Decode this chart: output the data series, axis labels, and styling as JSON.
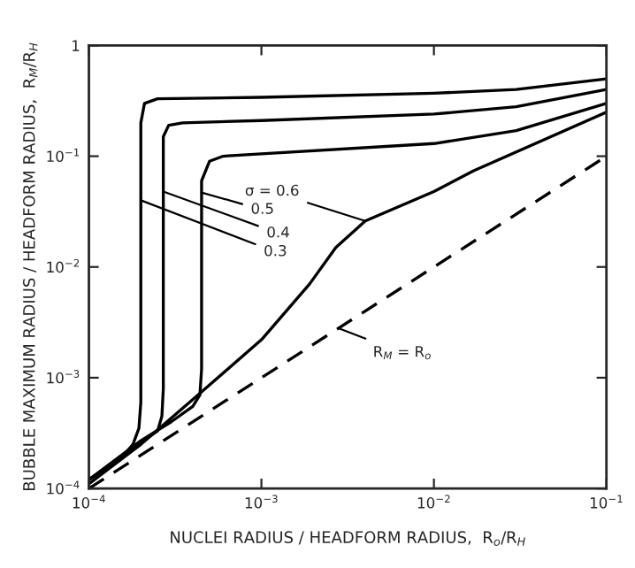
{
  "chart_data": {
    "type": "line",
    "xlabel": "NUCLEI RADIUS / HEADFORM RADIUS,  R$_{o}$/R$_{H}$",
    "ylabel": "BUBBLE MAXIMUM RADIUS / HEADFORM RADIUS,  R$_{M}$/R$_{H}$",
    "log": "xy",
    "xlim": [
      0.0001,
      0.1
    ],
    "ylim": [
      0.0001,
      1
    ],
    "xticks": [
      {
        "value": 0.0001,
        "label": "10$^{−4}$"
      },
      {
        "value": 0.001,
        "label": "10$^{−3}$"
      },
      {
        "value": 0.01,
        "label": "10$^{−2}$"
      },
      {
        "value": 0.1,
        "label": "10$^{−1}$"
      }
    ],
    "yticks": [
      {
        "value": 0.0001,
        "label": "10$^{−4}$"
      },
      {
        "value": 0.001,
        "label": "10$^{−3}$"
      },
      {
        "value": 0.01,
        "label": "10$^{−2}$"
      },
      {
        "value": 0.1,
        "label": "10$^{−1}$"
      },
      1
    ],
    "grid": false,
    "legend": false,
    "marker": "none",
    "series": [
      {
        "color": "#000000",
        "line_style": "solid",
        "x": [
          0.0001,
          0.00015,
          0.00018,
          0.000195,
          0.0002,
          0.0002,
          0.0002,
          0.00021,
          0.00025,
          0.001,
          0.01,
          0.03,
          0.1
        ],
        "values": [
          0.00012,
          0.00018,
          0.00025,
          0.00035,
          0.0006,
          0.01,
          0.2,
          0.3,
          0.33,
          0.34,
          0.37,
          0.4,
          0.5
        ]
      },
      {
        "color": "#000000",
        "line_style": "solid",
        "x": [
          0.0001,
          0.0002,
          0.00025,
          0.000265,
          0.00027,
          0.00027,
          0.00027,
          0.00029,
          0.00035,
          0.001,
          0.01,
          0.03,
          0.1
        ],
        "values": [
          0.00012,
          0.00026,
          0.00033,
          0.00045,
          0.0008,
          0.01,
          0.15,
          0.19,
          0.2,
          0.21,
          0.24,
          0.28,
          0.4
        ]
      },
      {
        "color": "#000000",
        "line_style": "solid",
        "x": [
          0.0001,
          0.0002,
          0.0003,
          0.0004,
          0.00044,
          0.00045,
          0.00045,
          0.00045,
          0.0005,
          0.0006,
          0.001,
          0.01,
          0.03,
          0.1
        ],
        "values": [
          0.00012,
          0.00027,
          0.0004,
          0.00055,
          0.0007,
          0.0012,
          0.01,
          0.06,
          0.09,
          0.1,
          0.105,
          0.13,
          0.17,
          0.3
        ]
      },
      {
        "color": "#000000",
        "line_style": "solid",
        "x": [
          0.0001,
          0.0002,
          0.00043,
          0.001,
          0.0019,
          0.0027,
          0.004,
          0.01,
          0.017,
          0.1
        ],
        "values": [
          0.00011,
          0.00025,
          0.0007,
          0.0022,
          0.007,
          0.015,
          0.026,
          0.048,
          0.074,
          0.25
        ]
      },
      {
        "color": "#000000",
        "line_style": "dashed",
        "x": [
          0.0001,
          0.1
        ],
        "values": [
          0.0001,
          0.1
        ]
      }
    ],
    "annotations": [
      {
        "text": "σ = 0.6",
        "x": 0.004,
        "y": 0.026
      },
      {
        "text": "0.5",
        "x": 0.00045,
        "y": 0.047
      },
      {
        "text": "0.4",
        "x": 0.00027,
        "y": 0.048
      },
      {
        "text": "0.3",
        "x": 0.0002,
        "y": 0.04
      },
      {
        "text": "R$_{M}$ = R$_{o}$",
        "x": 0.0028,
        "y": 0.0028
      }
    ]
  }
}
